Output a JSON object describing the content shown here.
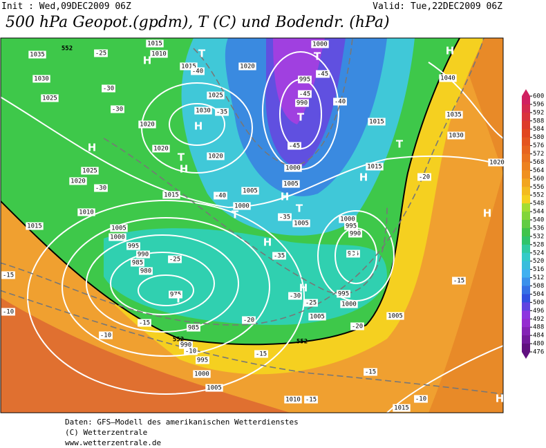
{
  "header": {
    "init": "Init : Wed,09DEC2009 06Z",
    "valid": "Valid: Tue,22DEC2009 06Z",
    "title": "500 hPa Geopot.(gpdm), T (C) und Bodendr. (hPa)"
  },
  "map": {
    "isobar_labels": [
      1035,
      1030,
      1025,
      1020,
      1025,
      1015,
      1010,
      1015,
      1010,
      1015,
      1020,
      1025,
      1030,
      1020,
      1020,
      1020,
      1015,
      1005,
      1000,
      1005,
      1000,
      995,
      990,
      985,
      980,
      975,
      985,
      990,
      995,
      1000,
      1005,
      1010,
      1015,
      1000,
      995,
      990,
      1000,
      1005,
      1015,
      1015,
      1005,
      1000,
      995,
      990,
      985,
      995,
      1000,
      1005,
      1005,
      1040,
      1035,
      1030,
      1020
    ],
    "temperature_labels": [
      -25,
      -30,
      -30,
      -40,
      -35,
      -45,
      -45,
      -40,
      -45,
      -30,
      -40,
      -35,
      -25,
      -35,
      -30,
      -25,
      -15,
      -20,
      -20,
      -10,
      -15,
      -20,
      -15,
      -15,
      -10,
      -10,
      -15,
      -10,
      -15
    ],
    "height_labels": [
      552,
      552,
      552
    ],
    "pressure_centers": [
      "T",
      "T",
      "H",
      "H",
      "T",
      "H",
      "H",
      "T",
      "H",
      "H",
      "T",
      "H",
      "T",
      "T",
      "H",
      "H",
      "H",
      "T",
      "H",
      "H"
    ]
  },
  "color_scale": {
    "labels": [
      600,
      596,
      592,
      588,
      584,
      580,
      576,
      572,
      568,
      564,
      560,
      556,
      552,
      548,
      544,
      540,
      536,
      532,
      528,
      524,
      520,
      516,
      512,
      508,
      504,
      500,
      496,
      492,
      488,
      484,
      480,
      476
    ]
  },
  "footer": {
    "source": "Daten: GFS—Modell des amerikanischen Wetterdienstes",
    "copyright": "(C) Wetterzentrale",
    "url": "www.wetterzentrale.de"
  }
}
